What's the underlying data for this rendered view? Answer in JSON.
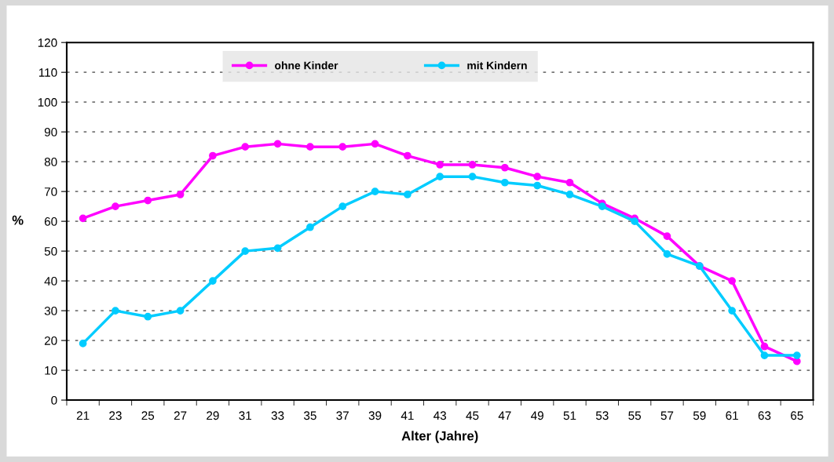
{
  "chart_data": {
    "type": "line",
    "xlabel": "Alter (Jahre)",
    "ylabel": "%",
    "categories": [
      "21",
      "23",
      "25",
      "27",
      "29",
      "31",
      "33",
      "35",
      "37",
      "39",
      "41",
      "43",
      "45",
      "47",
      "49",
      "51",
      "53",
      "55",
      "57",
      "59",
      "61",
      "63",
      "65"
    ],
    "series": [
      {
        "name": "ohne Kinder",
        "color": "#ff00ff",
        "values": [
          61,
          65,
          67,
          69,
          82,
          85,
          86,
          85,
          85,
          86,
          82,
          79,
          79,
          78,
          75,
          73,
          66,
          61,
          55,
          45,
          40,
          18,
          13
        ]
      },
      {
        "name": "mit Kindern",
        "color": "#00ccff",
        "values": [
          19,
          30,
          28,
          30,
          40,
          50,
          51,
          58,
          65,
          70,
          69,
          75,
          75,
          73,
          72,
          69,
          65,
          60,
          49,
          45,
          30,
          15,
          15
        ]
      }
    ],
    "ylim": [
      0,
      120
    ],
    "yticks": [
      0,
      10,
      20,
      30,
      40,
      50,
      60,
      70,
      80,
      90,
      100,
      110,
      120
    ],
    "grid": "y",
    "legend": "top",
    "marker": "circle",
    "line_style": "solid"
  }
}
